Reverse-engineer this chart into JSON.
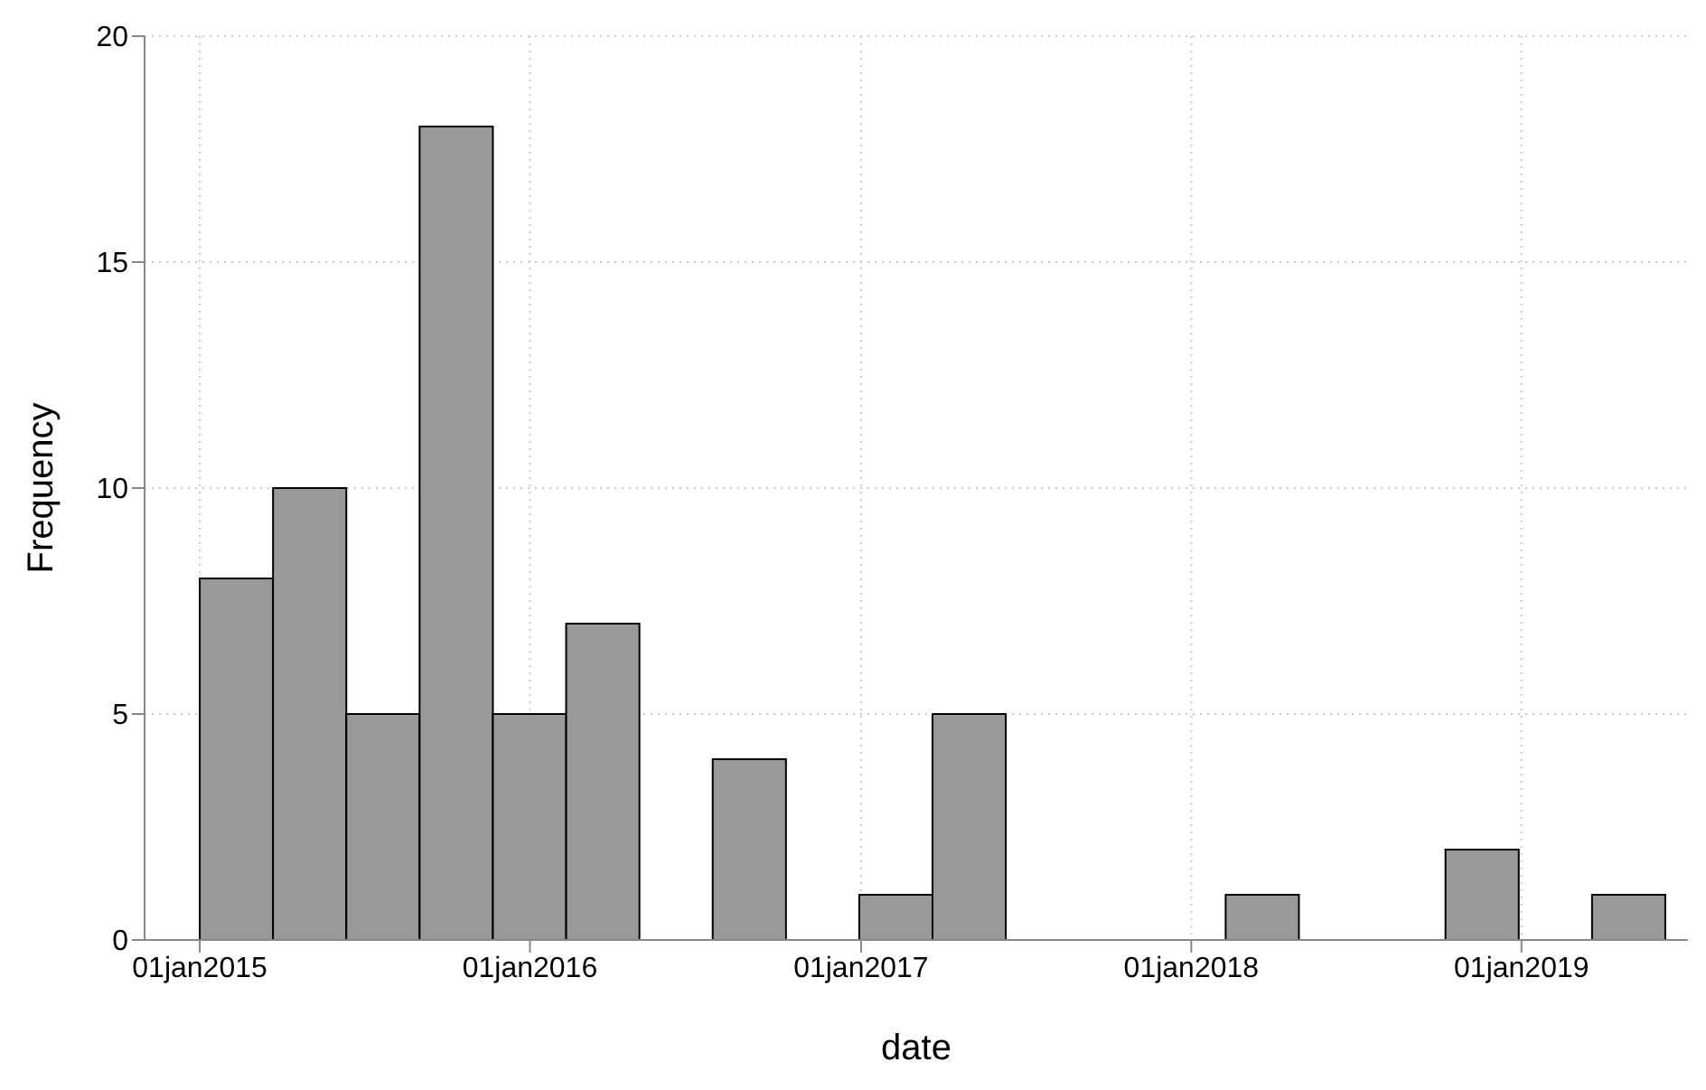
{
  "chart_data": {
    "type": "histogram",
    "xlabel": "date",
    "ylabel": "Frequency",
    "color": "#999999",
    "bins": [
      "2015-01-01",
      "2015-03-23",
      "2015-06-12",
      "2015-09-01",
      "2015-11-21",
      "2016-02-10",
      "2016-05-01",
      "2016-07-21",
      "2016-10-10",
      "2016-12-30",
      "2017-03-21",
      "2017-06-10",
      "2017-08-30",
      "2017-11-19",
      "2018-02-08",
      "2018-04-30",
      "2018-07-20",
      "2018-10-09",
      "2018-12-29",
      "2019-03-20",
      "2019-06-09"
    ],
    "values": [
      8,
      10,
      5,
      18,
      5,
      7,
      0,
      4,
      0,
      1,
      5,
      0,
      0,
      0,
      1,
      0,
      0,
      2,
      0,
      1
    ],
    "xlim": [
      "2014-11-01",
      "2019-07-04"
    ],
    "xticks": [
      {
        "value": "2015-01-01",
        "label": "01jan2015"
      },
      {
        "value": "2016-01-01",
        "label": "01jan2016"
      },
      {
        "value": "2017-01-01",
        "label": "01jan2017"
      },
      {
        "value": "2018-01-01",
        "label": "01jan2018"
      },
      {
        "value": "2019-01-01",
        "label": "01jan2019"
      }
    ],
    "ylim": [
      0,
      20
    ],
    "yticks": [
      0,
      5,
      10,
      15,
      20
    ],
    "grid": true
  }
}
